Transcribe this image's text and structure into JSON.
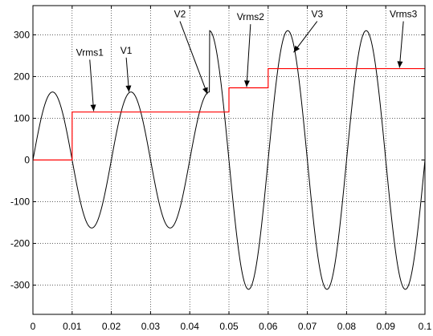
{
  "chart_data": {
    "type": "line",
    "title": "",
    "xlabel": "",
    "ylabel": "",
    "xlim": [
      0,
      0.1
    ],
    "ylim": [
      -370,
      370
    ],
    "grid": true,
    "x_ticks": [
      "0",
      "0.01",
      "0.02",
      "0.03",
      "0.04",
      "0.05",
      "0.06",
      "0.07",
      "0.08",
      "0.09",
      "0.1"
    ],
    "y_ticks": [
      "-300",
      "-200",
      "-100",
      "0",
      "100",
      "200",
      "300"
    ],
    "series": [
      {
        "color": "#000000",
        "segments": [
          {
            "x_start": 0.0,
            "x_end": 0.045,
            "amplitude": 163,
            "frequency_hz": 50
          },
          {
            "x_start": 0.045,
            "x_end": 0.1,
            "amplitude": 310,
            "frequency_hz": 50
          }
        ],
        "x": [
          0,
          0.005,
          0.01,
          0.015,
          0.02,
          0.025,
          0.03,
          0.035,
          0.04,
          0.045,
          0.05,
          0.055,
          0.06,
          0.065,
          0.07,
          0.075,
          0.08,
          0.085,
          0.09,
          0.095,
          0.1
        ],
        "y": [
          0,
          163,
          0,
          -163,
          0,
          163,
          0,
          -163,
          0,
          310,
          0,
          -310,
          0,
          310,
          0,
          -310,
          0,
          310,
          0,
          -310,
          0
        ]
      },
      {
        "color": "#ff0000",
        "x": [
          0,
          0.01,
          0.01,
          0.05,
          0.05,
          0.06,
          0.06,
          0.1
        ],
        "y": [
          0,
          0,
          115,
          115,
          173,
          173,
          219,
          219
        ]
      }
    ],
    "annotations": [
      {
        "text": "Vrms1",
        "text_x": 0.0145,
        "text_y": 250,
        "arrow_x": 0.0155,
        "arrow_y": 117
      },
      {
        "text": "V1",
        "text_x": 0.0238,
        "text_y": 255,
        "arrow_x": 0.0245,
        "arrow_y": 163
      },
      {
        "text": "V2",
        "text_x": 0.0375,
        "text_y": 342,
        "arrow_x": 0.0445,
        "arrow_y": 158
      },
      {
        "text": "Vrms2",
        "text_x": 0.0555,
        "text_y": 335,
        "arrow_x": 0.0545,
        "arrow_y": 175
      },
      {
        "text": "V3",
        "text_x": 0.0725,
        "text_y": 342,
        "arrow_x": 0.0665,
        "arrow_y": 258
      },
      {
        "text": "Vrms3",
        "text_x": 0.0945,
        "text_y": 342,
        "arrow_x": 0.0935,
        "arrow_y": 221
      }
    ]
  }
}
